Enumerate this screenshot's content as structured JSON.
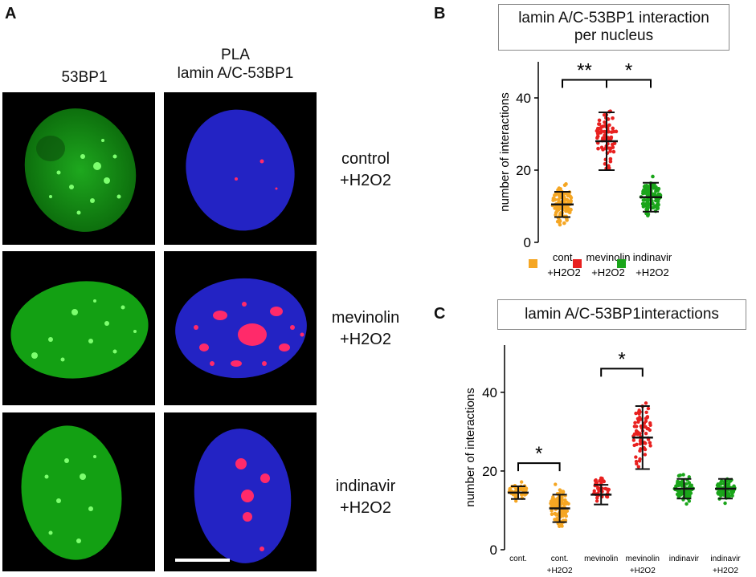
{
  "panel_letters": {
    "a": "A",
    "b": "B",
    "c": "C"
  },
  "col_headers": {
    "col1": "53BP1",
    "col2_line1": "PLA",
    "col2_line2": "lamin A/C-53BP1"
  },
  "row_labels": [
    {
      "line1": "control",
      "line2": "+H2O2"
    },
    {
      "line1": "mevinolin",
      "line2": "+H2O2"
    },
    {
      "line1": "indinavir",
      "line2": "+H2O2"
    }
  ],
  "colors": {
    "orange": "#f5a623",
    "red": "#e8201f",
    "green": "#1aa51a",
    "nucleus_green": "#18c018",
    "nucleus_blue": "#2a2ad8",
    "pla_red": "#ff2a6a"
  },
  "chart_data": [
    {
      "type": "scatter",
      "title": "lamin A/C-53BP1 interaction per nucleus",
      "title_line1": "lamin A/C-53BP1 interaction",
      "title_line2": "per nucleus",
      "ylabel": "number of interactions",
      "ylim": [
        0,
        50
      ],
      "yticks": [
        0,
        20,
        40
      ],
      "legend_position": "bottom",
      "groups": [
        {
          "name": "cont. +H2O2",
          "legend_line1": "cont.",
          "legend_line2": "+H2O2",
          "color": "#f5a623",
          "mean": 10.5,
          "sd": 3.5,
          "min": 4,
          "max": 18,
          "n": 110
        },
        {
          "name": "mevinolin +H2O2",
          "legend_line1": "mevinolin",
          "legend_line2": "+H2O2",
          "color": "#e8201f",
          "mean": 28,
          "sd": 8,
          "min": 17,
          "max": 42,
          "n": 70
        },
        {
          "name": "indinavir +H2O2",
          "legend_line1": "indinavir",
          "legend_line2": "+H2O2",
          "color": "#1aa51a",
          "mean": 12.5,
          "sd": 4,
          "min": 6,
          "max": 19,
          "n": 110
        }
      ],
      "significance": [
        {
          "from": 0,
          "to": 1,
          "label": "**",
          "y": 45
        },
        {
          "from": 1,
          "to": 2,
          "label": "*",
          "y": 45
        }
      ]
    },
    {
      "type": "scatter",
      "title": "lamin A/C-53BP1interactions",
      "ylabel": "number of interactions",
      "ylim": [
        0,
        52
      ],
      "yticks": [
        0,
        20,
        40
      ],
      "categories": [
        {
          "line1": "cont.",
          "line2": ""
        },
        {
          "line1": "cont.",
          "line2": "+H2O2"
        },
        {
          "line1": "mevinolin",
          "line2": ""
        },
        {
          "line1": "mevinolin",
          "line2": "+H2O2"
        },
        {
          "line1": "indinavir",
          "line2": ""
        },
        {
          "line1": "indinavir",
          "line2": "+H2O2"
        }
      ],
      "groups": [
        {
          "name": "cont.",
          "color": "#f5a623",
          "mean": 14.5,
          "sd": 1.6,
          "min": 12,
          "max": 18,
          "n": 40
        },
        {
          "name": "cont. +H2O2",
          "color": "#f5a623",
          "mean": 10.5,
          "sd": 3.5,
          "min": 4,
          "max": 18,
          "n": 110
        },
        {
          "name": "mevinolin",
          "color": "#e8201f",
          "mean": 14,
          "sd": 2.5,
          "min": 11,
          "max": 20,
          "n": 45
        },
        {
          "name": "mevinolin +H2O2",
          "color": "#e8201f",
          "mean": 28.5,
          "sd": 8,
          "min": 17,
          "max": 42,
          "n": 70
        },
        {
          "name": "indinavir",
          "color": "#1aa51a",
          "mean": 15.5,
          "sd": 2.5,
          "min": 11,
          "max": 20,
          "n": 80
        },
        {
          "name": "indinavir +H2O2",
          "color": "#1aa51a",
          "mean": 15.5,
          "sd": 2.5,
          "min": 11,
          "max": 20,
          "n": 80
        }
      ],
      "significance": [
        {
          "from": 0,
          "to": 1,
          "label": "*",
          "y": 22
        },
        {
          "from": 2,
          "to": 3,
          "label": "*",
          "y": 46
        }
      ]
    }
  ]
}
